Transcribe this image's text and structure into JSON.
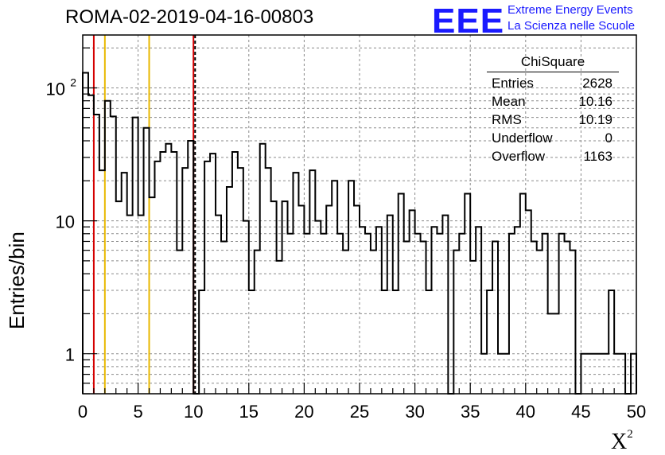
{
  "title": "ROMA-02-2019-04-16-00803",
  "logo": {
    "letters": "EEE",
    "line1": "Extreme Energy Events",
    "line2": "La Scienza nelle Scuole",
    "color": "#1a1aff"
  },
  "stats_box": {
    "name": "ChiSquare",
    "rows": [
      {
        "label": "Entries",
        "value": "2628"
      },
      {
        "label": "Mean",
        "value": "10.16"
      },
      {
        "label": "RMS",
        "value": "10.19"
      },
      {
        "label": "Underflow",
        "value": "0"
      },
      {
        "label": "Overflow",
        "value": "1163"
      }
    ]
  },
  "chart_data": {
    "type": "histogram",
    "xlabel": "X",
    "xlabel_sup": "2",
    "ylabel": "Entries/bin",
    "xlim": [
      0,
      50
    ],
    "ylim": [
      0.5,
      250
    ],
    "y_scale": "log",
    "grid": true,
    "bin_width": 0.5,
    "x_ticks": [
      "0",
      "5",
      "10",
      "15",
      "20",
      "25",
      "30",
      "35",
      "40",
      "45",
      "50"
    ],
    "y_ticks": [
      {
        "value": 1,
        "label": "1"
      },
      {
        "value": 10,
        "label": "10"
      },
      {
        "value": 100,
        "label": "10",
        "sup": "2"
      }
    ],
    "values": [
      130,
      88,
      63,
      24,
      80,
      61,
      14,
      23,
      11,
      60,
      11,
      50,
      15,
      28,
      33,
      38,
      33,
      6,
      25,
      40,
      0.5,
      3,
      28,
      32,
      11,
      7,
      18,
      33,
      25,
      10,
      3,
      6,
      38,
      25,
      14,
      5,
      14,
      8,
      23,
      13,
      8,
      24,
      10,
      8,
      13,
      20,
      8,
      6,
      20,
      13,
      9,
      8,
      6,
      9,
      3,
      11,
      3,
      16,
      7,
      12,
      8,
      7,
      3,
      9,
      8,
      11,
      0.5,
      6,
      8,
      16,
      5,
      9,
      1,
      3,
      7,
      1,
      1,
      8,
      9,
      16,
      12,
      7,
      6,
      8,
      2,
      2,
      8,
      7,
      6,
      0.5,
      1,
      1,
      1,
      1,
      1,
      3,
      1,
      1,
      0.5,
      1
    ],
    "vertical_lines": [
      {
        "x": 1,
        "color": "#d40000",
        "style": "solid"
      },
      {
        "x": 2,
        "color": "#e8b800",
        "style": "solid"
      },
      {
        "x": 6,
        "color": "#e8b800",
        "style": "solid"
      },
      {
        "x": 10,
        "color": "#d40000",
        "style": "solid"
      },
      {
        "x": 10.15,
        "color": "#000000",
        "style": "dashed"
      }
    ]
  }
}
